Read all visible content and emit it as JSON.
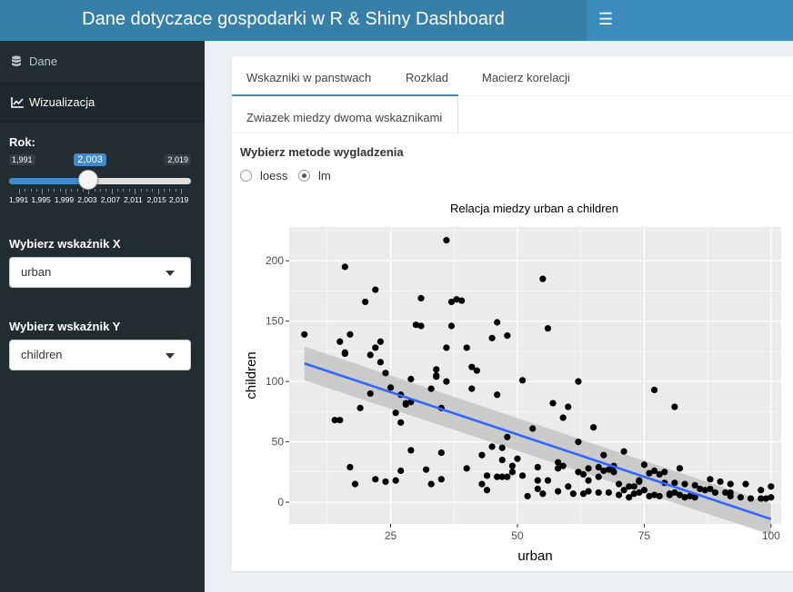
{
  "header": {
    "title": "Dane dotyczace gospodarki w R & Shiny Dashboard",
    "menu_icon": "bars-icon"
  },
  "sidebar": {
    "items": [
      {
        "label": "Dane",
        "icon": "database-icon"
      },
      {
        "label": "Wizualizacja",
        "icon": "line-chart-icon"
      }
    ],
    "year": {
      "label": "Rok:",
      "min_label": "1,991",
      "max_label": "2,019",
      "current_label": "2,003",
      "value": 2003,
      "min": 1991,
      "max": 2019,
      "grid_labels": [
        "1,991",
        "1,995",
        "1,999",
        "2,003",
        "2,007",
        "2,011",
        "2,015",
        "2,019"
      ]
    },
    "x_select": {
      "label": "Wybierz wskaźnik X",
      "value": "urban"
    },
    "y_select": {
      "label": "Wybierz wskaźnik Y",
      "value": "children"
    }
  },
  "main": {
    "tabs": [
      {
        "label": "Wskazniki w panstwach"
      },
      {
        "label": "Rozklad"
      },
      {
        "label": "Macierz korelacji"
      },
      {
        "label": "Zwiazek miedzy dwoma wskaznikami"
      }
    ],
    "smoothing": {
      "label": "Wybierz metode wygladzenia",
      "options": [
        "loess",
        "lm"
      ],
      "selected": "lm"
    }
  },
  "chart_data": {
    "type": "scatter",
    "title": "Relacja miedzy urban a children",
    "xlabel": "urban",
    "ylabel": "children",
    "xlim": [
      5,
      102
    ],
    "ylim": [
      -18,
      228
    ],
    "x_ticks": [
      25,
      50,
      75,
      100
    ],
    "y_ticks": [
      0,
      50,
      100,
      150,
      200
    ],
    "grid": true,
    "colors": {
      "panel_bg": "#ebebeb",
      "grid": "#ffffff",
      "points": "#000000",
      "fit_line": "#3366ff",
      "ribbon": "#c4c4c4"
    },
    "fit": {
      "method": "lm",
      "x0": 8,
      "y0": 115,
      "x1": 100,
      "y1": -14,
      "se_x0": 14,
      "se_x1": 13
    },
    "points": [
      [
        8,
        139
      ],
      [
        14,
        68
      ],
      [
        15,
        68
      ],
      [
        15,
        133
      ],
      [
        16,
        123
      ],
      [
        16,
        124
      ],
      [
        17,
        139
      ],
      [
        16,
        195
      ],
      [
        17,
        29
      ],
      [
        18,
        15
      ],
      [
        19,
        78
      ],
      [
        20,
        166
      ],
      [
        21,
        122
      ],
      [
        21,
        90
      ],
      [
        22,
        176
      ],
      [
        22,
        19
      ],
      [
        22,
        128
      ],
      [
        23,
        133
      ],
      [
        23,
        116
      ],
      [
        24,
        107
      ],
      [
        24,
        17
      ],
      [
        25,
        95
      ],
      [
        26,
        74
      ],
      [
        26,
        18
      ],
      [
        27,
        89
      ],
      [
        27,
        26
      ],
      [
        27,
        66
      ],
      [
        28,
        81
      ],
      [
        28,
        82
      ],
      [
        29,
        102
      ],
      [
        29,
        43
      ],
      [
        29,
        83
      ],
      [
        30,
        147
      ],
      [
        31,
        169
      ],
      [
        31,
        146
      ],
      [
        32,
        27
      ],
      [
        33,
        94
      ],
      [
        33,
        15
      ],
      [
        34,
        105
      ],
      [
        34,
        104
      ],
      [
        34,
        110
      ],
      [
        35,
        78
      ],
      [
        35,
        19
      ],
      [
        35,
        41
      ],
      [
        36,
        100
      ],
      [
        36,
        128
      ],
      [
        36,
        217
      ],
      [
        37,
        146
      ],
      [
        37,
        166
      ],
      [
        38,
        168
      ],
      [
        39,
        167
      ],
      [
        40,
        28
      ],
      [
        40,
        128
      ],
      [
        41,
        112
      ],
      [
        41,
        94
      ],
      [
        42,
        109
      ],
      [
        43,
        15
      ],
      [
        43,
        39
      ],
      [
        44,
        10
      ],
      [
        44,
        22
      ],
      [
        45,
        46
      ],
      [
        45,
        136
      ],
      [
        46,
        149
      ],
      [
        46,
        21
      ],
      [
        46,
        89
      ],
      [
        47,
        35
      ],
      [
        47,
        45
      ],
      [
        47,
        21
      ],
      [
        48,
        54
      ],
      [
        48,
        138
      ],
      [
        48,
        21
      ],
      [
        49,
        25
      ],
      [
        49,
        30
      ],
      [
        50,
        36
      ],
      [
        51,
        22
      ],
      [
        51,
        101
      ],
      [
        52,
        5
      ],
      [
        53,
        61
      ],
      [
        54,
        18
      ],
      [
        54,
        29
      ],
      [
        54,
        11
      ],
      [
        55,
        185
      ],
      [
        55,
        7
      ],
      [
        56,
        144
      ],
      [
        56,
        18
      ],
      [
        57,
        82
      ],
      [
        58,
        28
      ],
      [
        58,
        33
      ],
      [
        58,
        9
      ],
      [
        59,
        70
      ],
      [
        59,
        30
      ],
      [
        60,
        13
      ],
      [
        60,
        79
      ],
      [
        61,
        7
      ],
      [
        62,
        50
      ],
      [
        62,
        100
      ],
      [
        62,
        25
      ],
      [
        63,
        23
      ],
      [
        63,
        7
      ],
      [
        64,
        9
      ],
      [
        64,
        18
      ],
      [
        64,
        28
      ],
      [
        65,
        62
      ],
      [
        66,
        8
      ],
      [
        66,
        29
      ],
      [
        66,
        21
      ],
      [
        67,
        39
      ],
      [
        67,
        26
      ],
      [
        68,
        8
      ],
      [
        68,
        27
      ],
      [
        69,
        25
      ],
      [
        69,
        30
      ],
      [
        70,
        6
      ],
      [
        70,
        15
      ],
      [
        71,
        42
      ],
      [
        71,
        10
      ],
      [
        72,
        4
      ],
      [
        72,
        13
      ],
      [
        73,
        7
      ],
      [
        73,
        13
      ],
      [
        74,
        18
      ],
      [
        74,
        17
      ],
      [
        74,
        8
      ],
      [
        75,
        10
      ],
      [
        75,
        31
      ],
      [
        76,
        5
      ],
      [
        76,
        24
      ],
      [
        77,
        26
      ],
      [
        77,
        6
      ],
      [
        77,
        93
      ],
      [
        78,
        5
      ],
      [
        78,
        23
      ],
      [
        79,
        16
      ],
      [
        79,
        25
      ],
      [
        80,
        6
      ],
      [
        80,
        7
      ],
      [
        81,
        8
      ],
      [
        81,
        16
      ],
      [
        81,
        79
      ],
      [
        82,
        28
      ],
      [
        82,
        6
      ],
      [
        83,
        4
      ],
      [
        83,
        15
      ],
      [
        84,
        5
      ],
      [
        85,
        4
      ],
      [
        85,
        14
      ],
      [
        86,
        11
      ],
      [
        87,
        10
      ],
      [
        88,
        19
      ],
      [
        88,
        11
      ],
      [
        89,
        8
      ],
      [
        90,
        17
      ],
      [
        91,
        8
      ],
      [
        92,
        5
      ],
      [
        92,
        8
      ],
      [
        92,
        15
      ],
      [
        94,
        4
      ],
      [
        95,
        15
      ],
      [
        96,
        3
      ],
      [
        98,
        10
      ],
      [
        98,
        3
      ],
      [
        99,
        3
      ],
      [
        100,
        13
      ],
      [
        100,
        4
      ]
    ]
  }
}
